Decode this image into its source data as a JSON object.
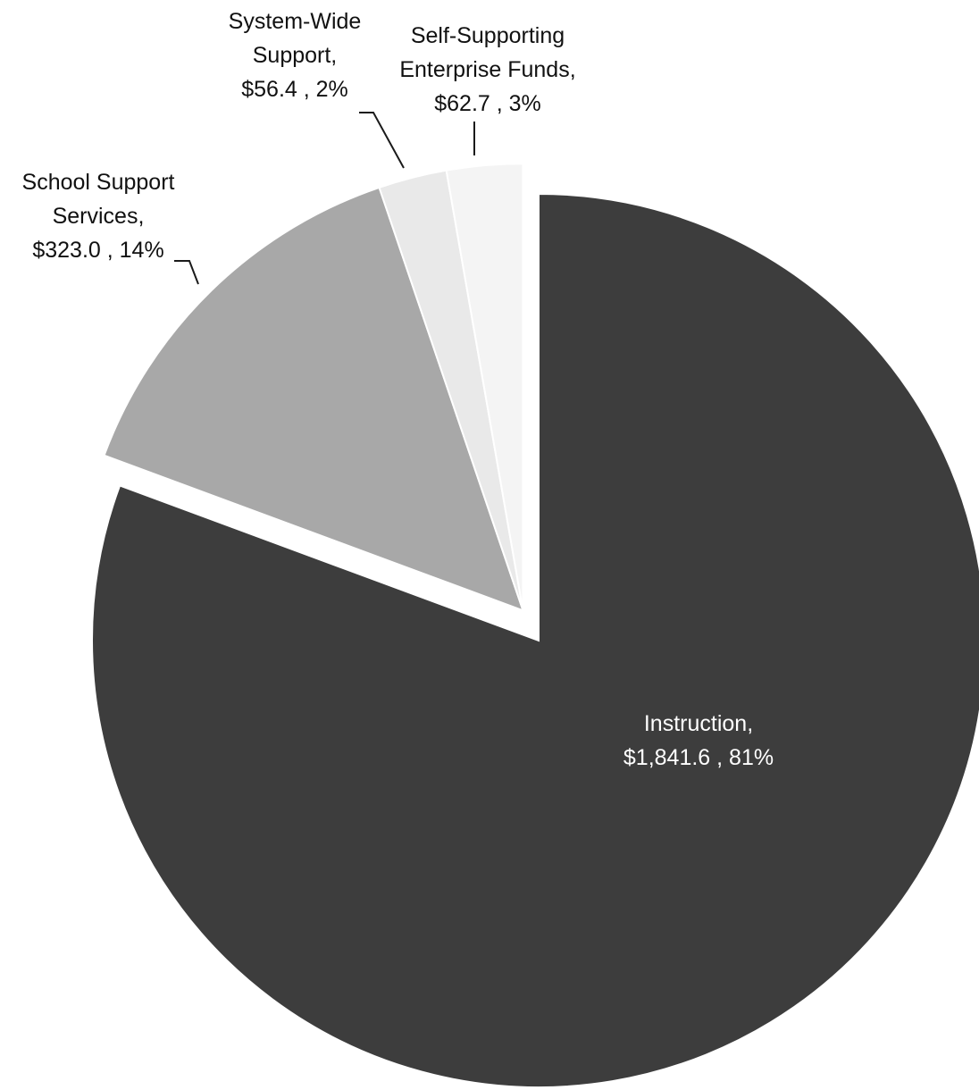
{
  "chart_data": {
    "type": "pie",
    "title": "",
    "slices": [
      {
        "name": "Instruction",
        "value": 1841.6,
        "percent": 81,
        "label_lines": [
          "Instruction,",
          "$1,841.6 , 81%"
        ],
        "color": "#3d3d3d",
        "exploded": false,
        "label_position": "inside"
      },
      {
        "name": "School Support Services",
        "value": 323.0,
        "percent": 14,
        "label_lines": [
          "School Support",
          "Services,",
          "$323.0 , 14%"
        ],
        "color": "#a8a8a8",
        "exploded": true,
        "label_position": "outside-left"
      },
      {
        "name": "System-Wide Support",
        "value": 56.4,
        "percent": 2,
        "label_lines": [
          "System-Wide",
          "Support,",
          "$56.4 , 2%"
        ],
        "color": "#e9e9e9",
        "exploded": true,
        "label_position": "outside-top"
      },
      {
        "name": "Self-Supporting Enterprise Funds",
        "value": 62.7,
        "percent": 3,
        "label_lines": [
          "Self-Supporting",
          "Enterprise Funds,",
          "$62.7 , 3%"
        ],
        "color": "#f4f4f4",
        "exploded": true,
        "label_position": "outside-top"
      }
    ],
    "legend": "none",
    "exploded_group": "non-instruction slices pulled out toward upper-left"
  }
}
